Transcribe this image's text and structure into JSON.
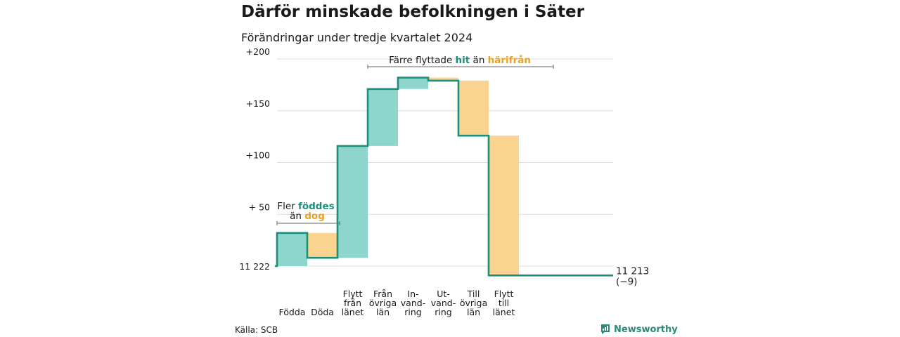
{
  "header": {
    "title": "Därför minskade befolkningen i Säter",
    "subtitle": "Förändringar under tredje kvartalet 2024"
  },
  "colors": {
    "increase": "#8ed6cb",
    "decrease": "#fad48f",
    "line": "#1a8f7c",
    "hit": "#1a8f7c",
    "harifran": "#f0a020"
  },
  "chart_data": {
    "type": "waterfall",
    "start_value": 11222,
    "start_label": "11 222",
    "end_label": "11 213",
    "end_change_label": "(−9)",
    "ylim": [
      11212,
      11422
    ],
    "yticks": [
      {
        "value": 11272,
        "label": "+ 50"
      },
      {
        "value": 11322,
        "label": "+100"
      },
      {
        "value": 11372,
        "label": "+150"
      },
      {
        "value": 11422,
        "label": "+200"
      }
    ],
    "grid": true,
    "steps": [
      {
        "label": [
          "Födda"
        ],
        "change": 32
      },
      {
        "label": [
          "Döda"
        ],
        "change": -24
      },
      {
        "label": [
          "Flytt",
          "från",
          "länet"
        ],
        "change": 108
      },
      {
        "label": [
          "Från",
          "övriga",
          "län"
        ],
        "change": 55
      },
      {
        "label": [
          "In-",
          "vand-",
          "ring"
        ],
        "change": 11
      },
      {
        "label": [
          "Ut-",
          "vand-",
          "ring"
        ],
        "change": -3
      },
      {
        "label": [
          "Till",
          "övriga",
          "län"
        ],
        "change": -53
      },
      {
        "label": [
          "Flytt",
          "till",
          "länet"
        ],
        "change": -135
      }
    ],
    "annotations": {
      "births": {
        "p1": "Fler ",
        "hit": "föddes",
        "p2": "än ",
        "dog": "dog"
      },
      "moves": {
        "p1": "Färre flyttade ",
        "hit": "hit",
        "p2": " än ",
        "harifran": "härifrån"
      }
    }
  },
  "footer": {
    "source": "Källa: SCB",
    "brand": "Newsworthy",
    "brand_icon": "bar-chart-icon"
  }
}
